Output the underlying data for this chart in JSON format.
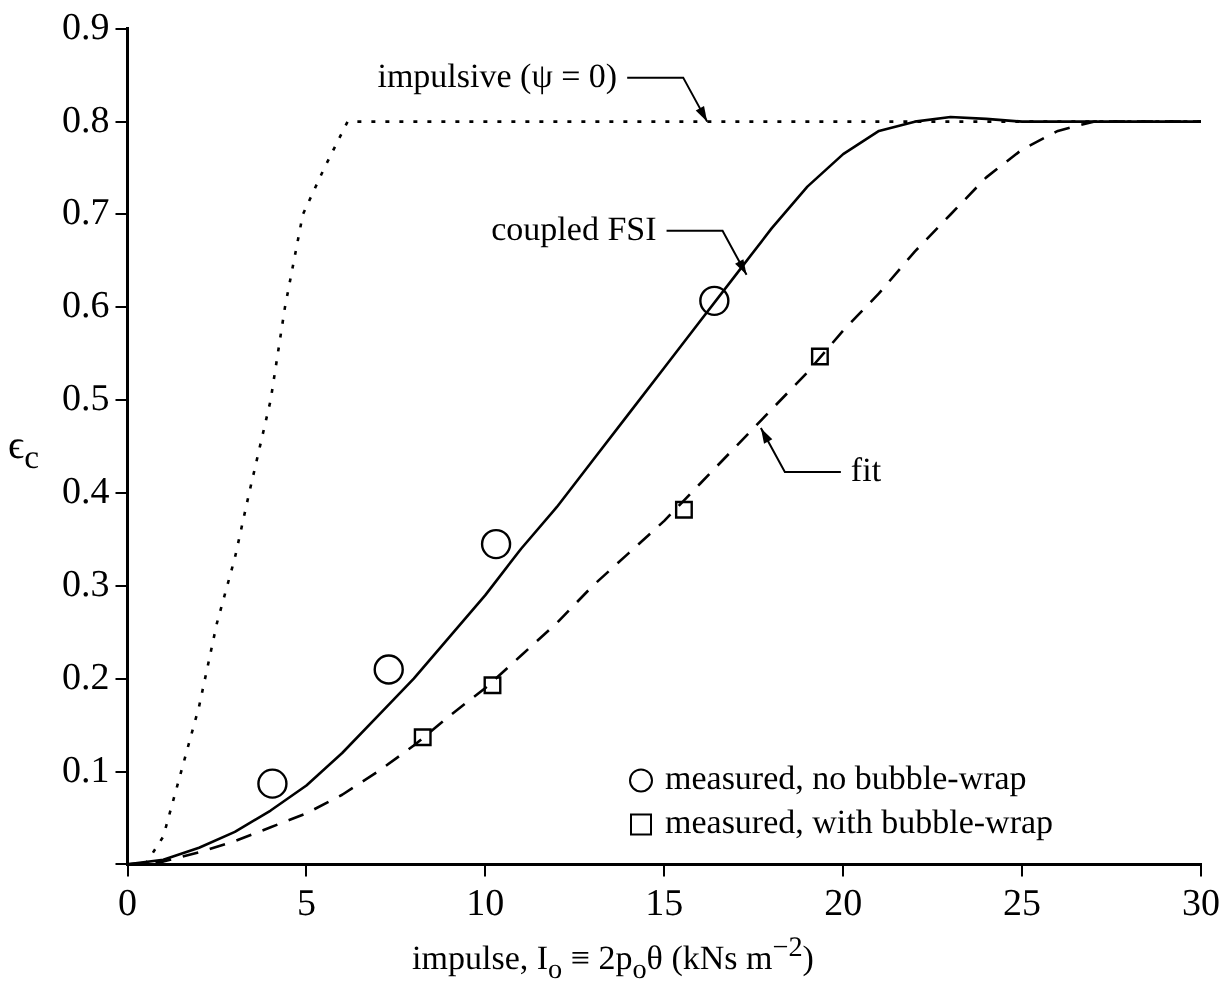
{
  "chart_data": {
    "type": "line",
    "xlabel": "impulse, I$_{o}$ ≡ 2p$_{o}$θ (kNs m$^{−2}$)",
    "ylabel": "ϵ$_{c}$",
    "xlim": [
      0,
      30
    ],
    "ylim": [
      0,
      0.9
    ],
    "xticks": [
      0,
      5,
      10,
      15,
      20,
      25,
      30
    ],
    "yticks": [
      {
        "value": 0,
        "label": null
      },
      0.1,
      0.2,
      0.3,
      0.4,
      0.5,
      0.6,
      0.7,
      0.8,
      0.9
    ],
    "grid": false,
    "legend": "bottom right",
    "series": [
      {
        "type": "line",
        "color": "#000000",
        "line_style": "dotted",
        "marker": "none",
        "x": [
          0.5,
          1,
          1.5,
          2,
          2.5,
          3,
          3.4,
          4,
          4.4,
          4.9,
          5.5,
          6.15,
          30
        ],
        "values": [
          0,
          0.03,
          0.1,
          0.17,
          0.26,
          0.33,
          0.4,
          0.5,
          0.6,
          0.7,
          0.75,
          0.8,
          0.8
        ]
      },
      {
        "type": "line",
        "color": "#000000",
        "line_style": "solid",
        "marker": "none",
        "x": [
          0,
          1,
          2,
          3,
          4,
          5,
          6,
          7,
          8,
          9,
          10,
          11,
          12,
          13,
          14,
          15,
          16,
          17,
          18,
          19,
          20,
          21,
          22,
          23,
          24,
          25,
          30
        ],
        "values": [
          0,
          0.005,
          0.018,
          0.035,
          0.058,
          0.085,
          0.12,
          0.16,
          0.2,
          0.245,
          0.29,
          0.34,
          0.385,
          0.435,
          0.485,
          0.535,
          0.585,
          0.635,
          0.685,
          0.73,
          0.765,
          0.79,
          0.8,
          0.805,
          0.803,
          0.8,
          0.8
        ]
      },
      {
        "type": "line",
        "color": "#000000",
        "line_style": "dashed",
        "marker": "none",
        "x": [
          0,
          1,
          2,
          3,
          4,
          5,
          6,
          7,
          8,
          9,
          10,
          11,
          12,
          13,
          14,
          15,
          16,
          17,
          18,
          19,
          20,
          21,
          22,
          23,
          24,
          25,
          26,
          27,
          30
        ],
        "values": [
          0,
          0.003,
          0.013,
          0.025,
          0.04,
          0.055,
          0.075,
          0.1,
          0.128,
          0.16,
          0.19,
          0.225,
          0.26,
          0.3,
          0.335,
          0.37,
          0.41,
          0.45,
          0.49,
          0.53,
          0.575,
          0.615,
          0.66,
          0.7,
          0.74,
          0.77,
          0.79,
          0.8,
          0.8
        ]
      },
      {
        "type": "scatter",
        "name": "measured, no bubble-wrap",
        "color": "#000000",
        "marker": "circle",
        "x": [
          4.05,
          7.3,
          10.3,
          16.4
        ],
        "values": [
          0.087,
          0.21,
          0.345,
          0.607
        ]
      },
      {
        "type": "scatter",
        "name": "measured, with bubble-wrap",
        "color": "#000000",
        "marker": "square",
        "x": [
          8.25,
          10.2,
          15.55,
          19.35
        ],
        "values": [
          0.137,
          0.193,
          0.382,
          0.547
        ]
      }
    ],
    "annotations": [
      {
        "text": "impulsive (ψ = 0)",
        "x": 16.2,
        "y": 0.8
      },
      {
        "text": "coupled FSI",
        "x": 17.3,
        "y": 0.635
      },
      {
        "text": "fit",
        "x": 17.7,
        "y": 0.47
      }
    ]
  }
}
